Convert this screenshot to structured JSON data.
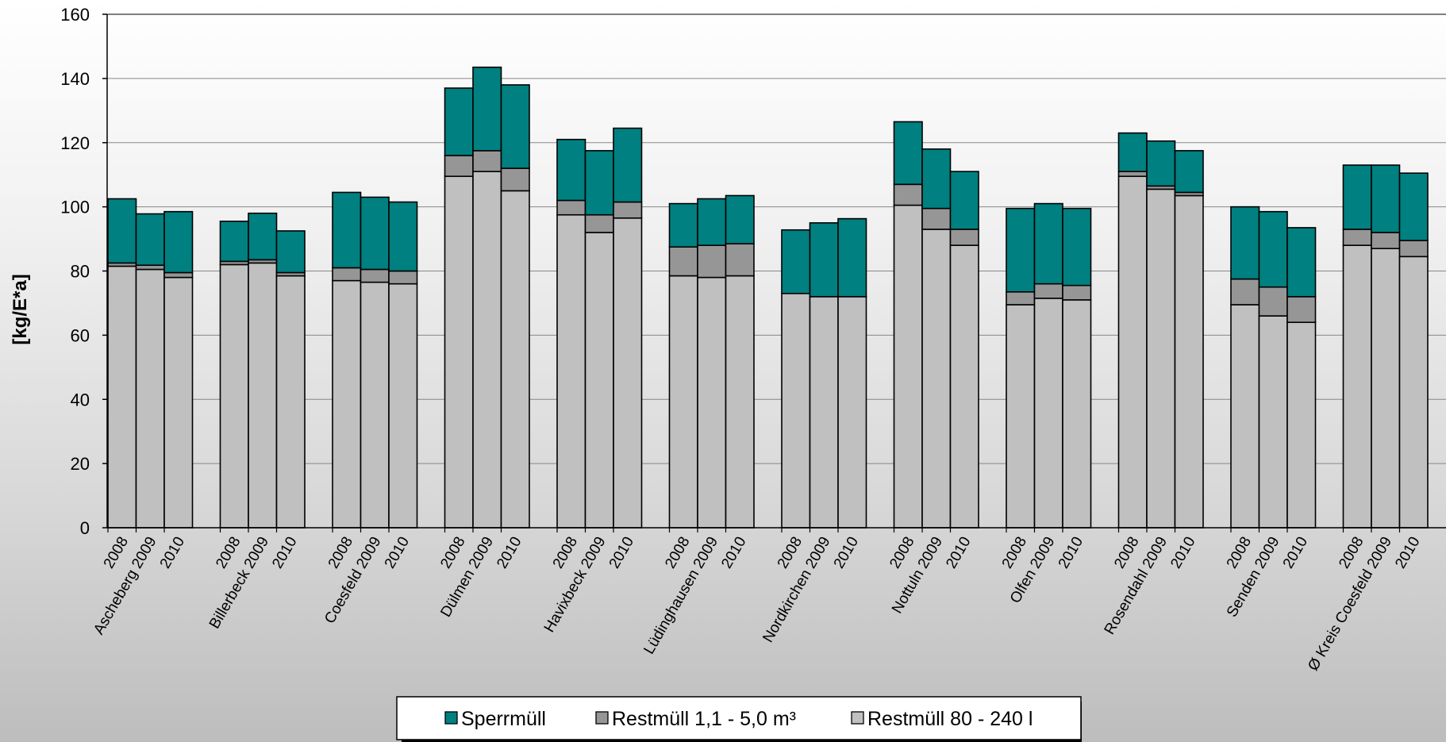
{
  "chart_data": {
    "type": "bar",
    "stacked": true,
    "ylabel": "[kg/E*a]",
    "xlabel": "",
    "ylim": [
      0,
      160
    ],
    "yticks": [
      0,
      20,
      40,
      60,
      80,
      100,
      120,
      140,
      160
    ],
    "grid": true,
    "legend_position": "bottom",
    "years": [
      "2008",
      "2009",
      "2010"
    ],
    "groups": [
      "Ascheberg",
      "Billerbeck",
      "Coesfeld",
      "Dülmen",
      "Havixbeck",
      "Lüdinghausen",
      "Nordkirchen",
      "Nottuln",
      "Olfen",
      "Rosendahl",
      "Senden",
      "Ø Kreis Coesfeld"
    ],
    "series": [
      {
        "name": "Restmüll 80 - 240 l",
        "color": "#c0c0c0",
        "values": [
          [
            81.5,
            80.5,
            78.0
          ],
          [
            82.0,
            82.5,
            78.5
          ],
          [
            77.0,
            76.5,
            76.0
          ],
          [
            109.5,
            111.0,
            105.0
          ],
          [
            97.5,
            92.0,
            96.5
          ],
          [
            78.5,
            78.0,
            78.5
          ],
          [
            73.0,
            72.0,
            72.0
          ],
          [
            100.5,
            93.0,
            88.0
          ],
          [
            69.5,
            71.5,
            71.0
          ],
          [
            109.5,
            105.5,
            103.5
          ],
          [
            69.5,
            66.0,
            64.0
          ],
          [
            88.0,
            87.0,
            84.5
          ]
        ]
      },
      {
        "name": "Restmüll 1,1 - 5,0 m³",
        "color": "#969696",
        "values": [
          [
            1.0,
            1.3,
            1.5
          ],
          [
            1.0,
            1.0,
            1.0
          ],
          [
            4.0,
            4.0,
            4.0
          ],
          [
            6.5,
            6.5,
            7.0
          ],
          [
            4.5,
            5.5,
            5.0
          ],
          [
            9.0,
            10.0,
            10.0
          ],
          [
            0.0,
            0.0,
            0.0
          ],
          [
            6.5,
            6.5,
            5.0
          ],
          [
            4.0,
            4.5,
            4.5
          ],
          [
            1.5,
            1.0,
            1.0
          ],
          [
            8.0,
            9.0,
            8.0
          ],
          [
            5.0,
            5.0,
            5.0
          ]
        ]
      },
      {
        "name": "Sperrmüll",
        "color": "#008080",
        "values": [
          [
            20.0,
            16.0,
            19.0
          ],
          [
            12.5,
            14.5,
            13.0
          ],
          [
            23.5,
            22.5,
            21.5
          ],
          [
            21.0,
            26.0,
            26.0
          ],
          [
            19.0,
            20.0,
            23.0
          ],
          [
            13.5,
            14.5,
            15.0
          ],
          [
            19.8,
            23.0,
            24.3
          ],
          [
            19.5,
            18.5,
            18.0
          ],
          [
            26.0,
            25.0,
            24.0
          ],
          [
            12.0,
            14.0,
            13.0
          ],
          [
            22.5,
            23.5,
            21.5
          ],
          [
            20.0,
            21.0,
            21.0
          ]
        ]
      }
    ]
  },
  "legend": {
    "items": [
      {
        "label": "Sperrmüll",
        "color": "#008080"
      },
      {
        "label": "Restmüll 1,1 - 5,0 m³",
        "color": "#969696"
      },
      {
        "label": "Restmüll 80 - 240 l",
        "color": "#c0c0c0"
      }
    ]
  }
}
